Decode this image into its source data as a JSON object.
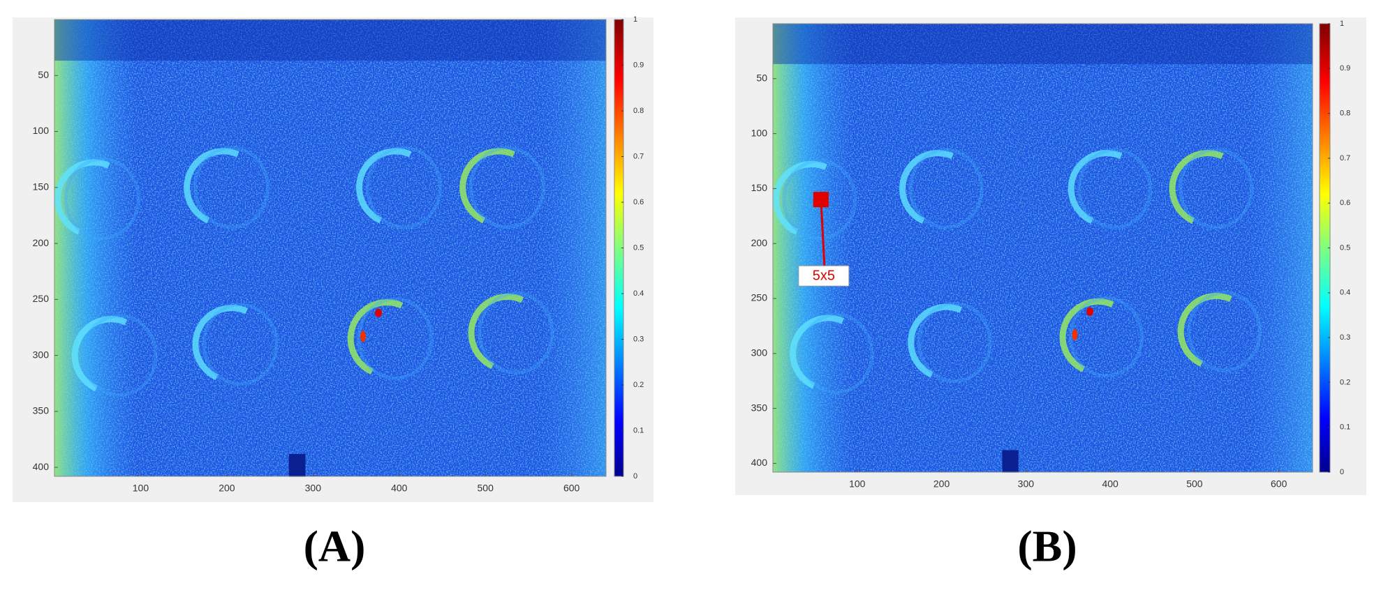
{
  "panels": [
    {
      "label": "(A)",
      "xlim": [
        0,
        640
      ],
      "ylim": [
        0,
        408
      ],
      "xticks": [
        100,
        200,
        300,
        400,
        500,
        600
      ],
      "yticks": [
        50,
        100,
        150,
        200,
        250,
        300,
        350,
        400
      ],
      "colorbar": {
        "lim": [
          0,
          1
        ],
        "ticks": [
          0,
          0.1,
          0.2,
          0.3,
          0.4,
          0.5,
          0.6,
          0.7,
          0.8,
          0.9,
          1
        ]
      }
    },
    {
      "label": "(B)",
      "xlim": [
        0,
        640
      ],
      "ylim": [
        0,
        408
      ],
      "xticks": [
        100,
        200,
        300,
        400,
        500,
        600
      ],
      "yticks": [
        50,
        100,
        150,
        200,
        250,
        300,
        350,
        400
      ],
      "colorbar": {
        "lim": [
          0,
          1
        ],
        "ticks": [
          0,
          0.1,
          0.2,
          0.3,
          0.4,
          0.5,
          0.6,
          0.7,
          0.8,
          0.9,
          1
        ]
      },
      "annotation": {
        "text": "5x5",
        "x": 57,
        "y": 160
      }
    }
  ]
}
